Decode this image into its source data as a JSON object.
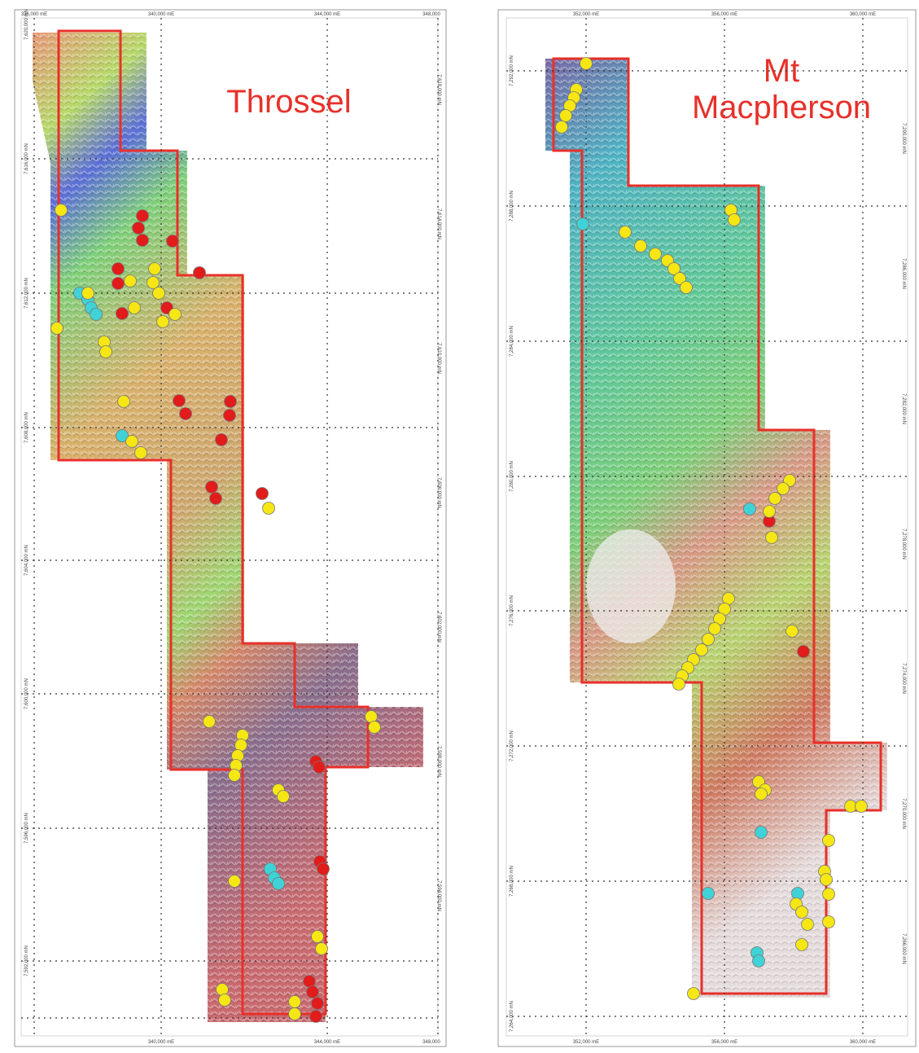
{
  "panels": [
    {
      "title": [
        "Throssel"
      ],
      "x_labels_top": [
        "336,000 mE",
        "340,000 mE",
        "344,000 mE",
        "348,000"
      ],
      "x_labels_bottom": [
        "340,000 mE",
        "344,000 mE",
        "348,000"
      ],
      "y_labels_left": [
        "7,620,000 mN",
        "7,616,000 mN",
        "7,612,000 mN",
        "7,608,000 mN",
        "7,604,000 mN",
        "7,600,000 mN",
        "7,596,000 mN",
        "7,592,000 mN"
      ],
      "y_labels_right": [
        "7,618,000 mN",
        "7,614,000 mN",
        "7,610,000 mN",
        "7,606,000 mN",
        "7,602,000 mN",
        "7,598,000 mN",
        "7,594,000 mN"
      ]
    },
    {
      "title": [
        "Mt",
        "Macpherson"
      ],
      "x_labels_top": [
        "352,000 mE",
        "356,000 mE",
        "360,000 mE"
      ],
      "x_labels_bottom": [
        "352,000 mE",
        "356,000 mE",
        "360,000 mE"
      ],
      "y_labels_left": [
        "7,292,000 mN",
        "7,288,000 mN",
        "7,284,000 mN",
        "7,280,000 mN",
        "7,276,000 mN",
        "7,272,000 mN",
        "7,268,000 mN",
        "7,264,000 mN"
      ],
      "y_labels_right": [
        "7,290,000 mN",
        "7,286,000 mN",
        "7,282,000 mN",
        "7,278,000 mN",
        "7,274,000 mN",
        "7,270,000 mN",
        "7,266,000 mN"
      ]
    }
  ]
}
